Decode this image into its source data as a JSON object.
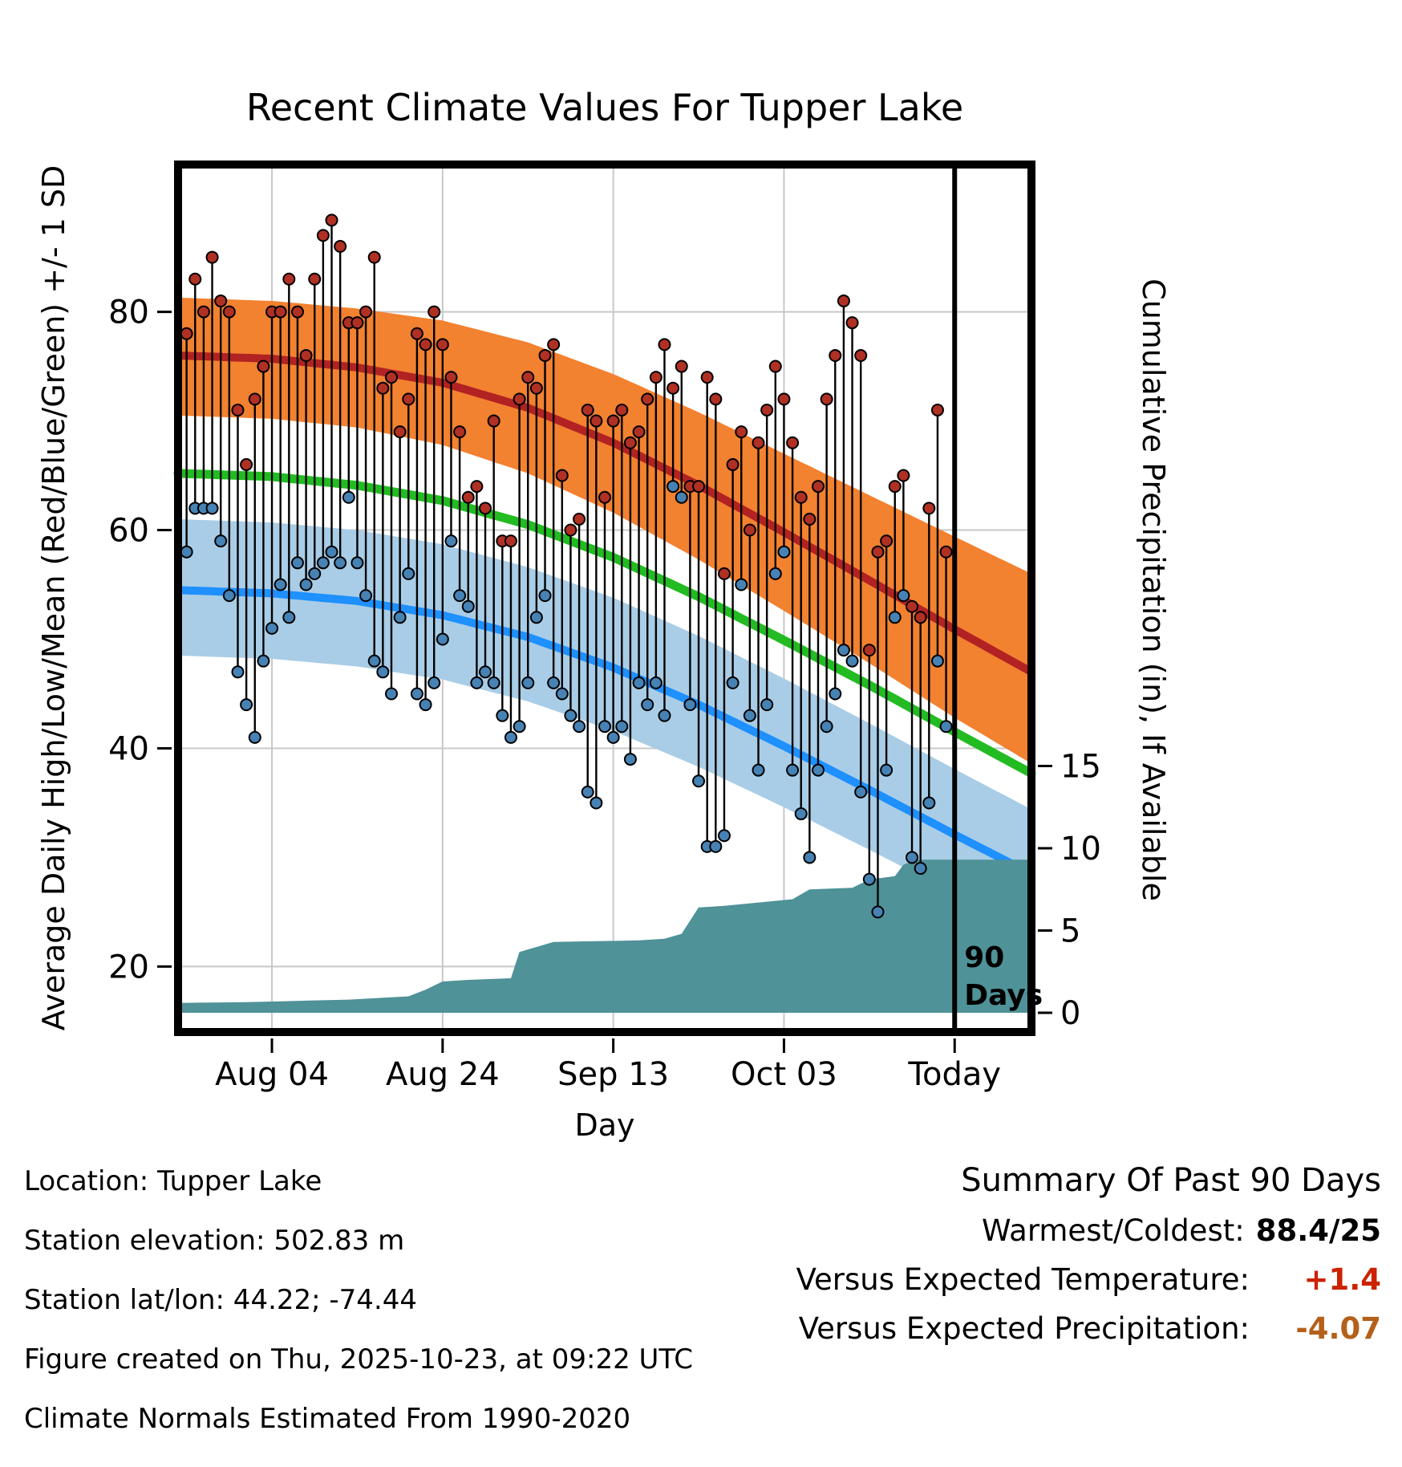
{
  "title": "Recent Climate Values For Tupper Lake",
  "axes": {
    "y_left_label": "Average Daily High/Low/Mean (Red/Blue/Green) +/- 1 SD",
    "y_right_label": "Cumulative Precipitation (in), If Available",
    "x_label": "Day",
    "y_left_ticks": [
      20,
      40,
      60,
      80
    ],
    "y_right_ticks": [
      0,
      5,
      10,
      15
    ],
    "x_ticks": [
      {
        "day": 11,
        "label": "Aug 04"
      },
      {
        "day": 31,
        "label": "Aug 24"
      },
      {
        "day": 51,
        "label": "Sep 13"
      },
      {
        "day": 71,
        "label": "Oct 03"
      },
      {
        "day": 91,
        "label": "Today"
      }
    ]
  },
  "chart_data": {
    "type": "line",
    "x_domain": [
      0,
      100
    ],
    "temp_ylim": [
      14,
      93.5
    ],
    "precip_ticks_in": [
      0,
      5,
      10,
      15
    ],
    "daily": {
      "first_day_index": 1,
      "high": [
        78,
        83,
        80,
        85,
        81,
        80,
        71,
        66,
        72,
        75,
        80,
        80,
        83,
        80,
        76,
        83,
        87,
        88.4,
        86,
        79,
        79,
        80,
        85,
        73,
        74,
        69,
        72,
        78,
        77,
        80,
        77,
        74,
        69,
        63,
        64,
        62,
        70,
        59,
        59,
        72,
        74,
        73,
        76,
        77,
        65,
        60,
        61,
        71,
        70,
        63,
        70,
        71,
        68,
        69,
        72,
        74,
        77,
        73,
        75,
        64,
        64,
        74,
        72,
        56,
        66,
        69,
        60,
        68,
        71,
        75,
        72,
        68,
        63,
        61,
        64,
        72,
        76,
        81,
        79,
        76,
        49,
        58,
        59,
        64,
        65,
        53,
        52,
        62,
        71,
        58
      ],
      "low": [
        58,
        62,
        62,
        62,
        59,
        54,
        47,
        44,
        41,
        48,
        51,
        55,
        52,
        57,
        55,
        56,
        57,
        58,
        57,
        63,
        57,
        54,
        48,
        47,
        45,
        52,
        56,
        45,
        44,
        46,
        50,
        59,
        54,
        53,
        46,
        47,
        46,
        43,
        41,
        42,
        46,
        52,
        54,
        46,
        45,
        43,
        42,
        36,
        35,
        42,
        41,
        42,
        39,
        46,
        44,
        46,
        43,
        64,
        63,
        44,
        37,
        31,
        31,
        32,
        46,
        55,
        43,
        38,
        44,
        56,
        58,
        38,
        34,
        30,
        38,
        42,
        45,
        49,
        48,
        36,
        28,
        25,
        38,
        52,
        54,
        30,
        29,
        35,
        48,
        42
      ]
    },
    "normals": {
      "high_upper": [
        [
          0,
          81.3
        ],
        [
          11,
          81.0
        ],
        [
          21,
          80.3
        ],
        [
          31,
          79.2
        ],
        [
          41,
          77.2
        ],
        [
          51,
          74.3
        ],
        [
          61,
          70.8
        ],
        [
          71,
          67.0
        ],
        [
          81,
          63.2
        ],
        [
          91,
          59.4
        ],
        [
          100,
          56.0
        ]
      ],
      "high_mean": [
        [
          0,
          76.0
        ],
        [
          11,
          75.7
        ],
        [
          21,
          74.9
        ],
        [
          31,
          73.5
        ],
        [
          41,
          71.2
        ],
        [
          51,
          68.0
        ],
        [
          61,
          64.1
        ],
        [
          71,
          59.8
        ],
        [
          81,
          55.4
        ],
        [
          91,
          50.9
        ],
        [
          100,
          47.0
        ]
      ],
      "high_lower": [
        [
          0,
          70.5
        ],
        [
          11,
          70.2
        ],
        [
          21,
          69.4
        ],
        [
          31,
          67.8
        ],
        [
          41,
          65.2
        ],
        [
          51,
          61.6
        ],
        [
          61,
          57.3
        ],
        [
          71,
          52.6
        ],
        [
          81,
          47.8
        ],
        [
          91,
          42.8
        ],
        [
          100,
          38.6
        ]
      ],
      "mean": [
        [
          0,
          65.2
        ],
        [
          11,
          64.9
        ],
        [
          21,
          64.1
        ],
        [
          31,
          62.7
        ],
        [
          41,
          60.5
        ],
        [
          51,
          57.5
        ],
        [
          61,
          53.9
        ],
        [
          71,
          49.9
        ],
        [
          81,
          45.8
        ],
        [
          91,
          41.5
        ],
        [
          100,
          37.7
        ]
      ],
      "low_upper": [
        [
          0,
          61.0
        ],
        [
          11,
          60.7
        ],
        [
          21,
          60.0
        ],
        [
          31,
          58.7
        ],
        [
          41,
          56.6
        ],
        [
          51,
          53.8
        ],
        [
          61,
          50.3
        ],
        [
          71,
          46.4
        ],
        [
          81,
          42.3
        ],
        [
          91,
          38.1
        ],
        [
          100,
          34.4
        ]
      ],
      "low_mean": [
        [
          0,
          54.5
        ],
        [
          11,
          54.2
        ],
        [
          21,
          53.5
        ],
        [
          31,
          52.2
        ],
        [
          41,
          50.2
        ],
        [
          51,
          47.4
        ],
        [
          61,
          44.0
        ],
        [
          71,
          40.2
        ],
        [
          81,
          36.2
        ],
        [
          91,
          32.1
        ],
        [
          100,
          28.5
        ]
      ],
      "low_lower": [
        [
          0,
          48.5
        ],
        [
          11,
          48.2
        ],
        [
          21,
          47.5
        ],
        [
          31,
          46.3
        ],
        [
          41,
          44.3
        ],
        [
          51,
          41.6
        ],
        [
          61,
          38.3
        ],
        [
          71,
          34.6
        ],
        [
          81,
          30.7
        ],
        [
          91,
          26.7
        ],
        [
          100,
          23.2
        ]
      ]
    },
    "precip_cumulative": [
      [
        0,
        0.6
      ],
      [
        8,
        0.65
      ],
      [
        12,
        0.7
      ],
      [
        20,
        0.8
      ],
      [
        27,
        1.0
      ],
      [
        29,
        1.4
      ],
      [
        31,
        1.9
      ],
      [
        34,
        2.0
      ],
      [
        39,
        2.1
      ],
      [
        40,
        3.7
      ],
      [
        42,
        4.0
      ],
      [
        44,
        4.3
      ],
      [
        54,
        4.4
      ],
      [
        57,
        4.5
      ],
      [
        59,
        4.8
      ],
      [
        61,
        6.4
      ],
      [
        64,
        6.5
      ],
      [
        72,
        6.9
      ],
      [
        74,
        7.5
      ],
      [
        79,
        7.6
      ],
      [
        81,
        8.1
      ],
      [
        84,
        8.3
      ],
      [
        85,
        9.0
      ],
      [
        86,
        9.2
      ],
      [
        87,
        9.3
      ],
      [
        100,
        9.3
      ]
    ],
    "annotation": {
      "day": 91,
      "lines": [
        "90",
        "Days"
      ]
    }
  },
  "colors": {
    "high_band": "#f28130",
    "high_line": "#b22222",
    "low_band": "#a9cde6",
    "low_line": "#1e90ff",
    "mean_line": "#22bb22",
    "precip_fill": "#4f9298",
    "high_dot": "#b03024",
    "low_dot": "#4682b4",
    "stem": "#000000",
    "grid": "#c8c8c8",
    "frame": "#000000"
  },
  "footer": {
    "lines": [
      "Location: Tupper Lake",
      "Station elevation: 502.83 m",
      "Station lat/lon: 44.22; -74.44",
      "Figure created on Thu, 2025-10-23, at 09:22 UTC",
      "Climate Normals Estimated From 1990-2020"
    ]
  },
  "summary": {
    "title": "Summary Of Past 90 Days",
    "rows": [
      {
        "label": "Warmest/Coldest:",
        "value": "88.4/25",
        "color": "#000000"
      },
      {
        "label": "Versus Expected Temperature:",
        "value": "+1.4",
        "color": "#cc2200"
      },
      {
        "label": "Versus Expected Precipitation:",
        "value": "-4.07",
        "color": "#b4601a"
      }
    ]
  }
}
